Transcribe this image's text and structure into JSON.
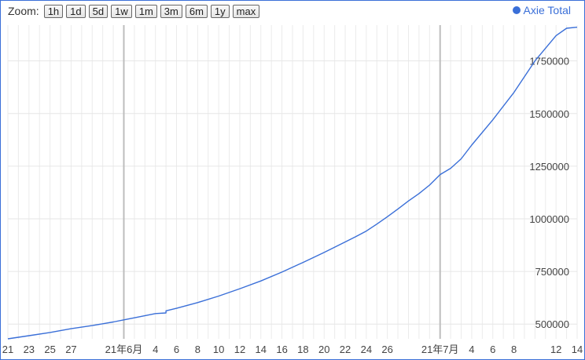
{
  "toolbar": {
    "zoom_label": "Zoom:",
    "buttons": [
      "1h",
      "1d",
      "5d",
      "1w",
      "1m",
      "3m",
      "6m",
      "1y",
      "max"
    ]
  },
  "legend": {
    "label": "Axie Total",
    "color": "#3a6fd8"
  },
  "chart_data": {
    "type": "line",
    "title": "",
    "xlabel": "",
    "ylabel": "",
    "x_start": "2021-05-21",
    "x_end": "2021-07-14",
    "x_ticks": [
      {
        "date": "2021-05-21",
        "label": "21"
      },
      {
        "date": "2021-05-23",
        "label": "23"
      },
      {
        "date": "2021-05-25",
        "label": "25"
      },
      {
        "date": "2021-05-27",
        "label": "27"
      },
      {
        "date": "2021-06-01",
        "label": "21年6月",
        "major": true
      },
      {
        "date": "2021-06-04",
        "label": "4"
      },
      {
        "date": "2021-06-06",
        "label": "6"
      },
      {
        "date": "2021-06-08",
        "label": "8"
      },
      {
        "date": "2021-06-10",
        "label": "10"
      },
      {
        "date": "2021-06-12",
        "label": "12"
      },
      {
        "date": "2021-06-14",
        "label": "14"
      },
      {
        "date": "2021-06-16",
        "label": "16"
      },
      {
        "date": "2021-06-18",
        "label": "18"
      },
      {
        "date": "2021-06-20",
        "label": "20"
      },
      {
        "date": "2021-06-22",
        "label": "22"
      },
      {
        "date": "2021-06-24",
        "label": "24"
      },
      {
        "date": "2021-06-26",
        "label": "26"
      },
      {
        "date": "2021-07-01",
        "label": "21年7月",
        "major": true
      },
      {
        "date": "2021-07-04",
        "label": "4"
      },
      {
        "date": "2021-07-06",
        "label": "6"
      },
      {
        "date": "2021-07-08",
        "label": "8"
      },
      {
        "date": "2021-07-12",
        "label": "12"
      },
      {
        "date": "2021-07-14",
        "label": "14"
      }
    ],
    "y_ticks": [
      {
        "value": 500000,
        "label": "500000"
      },
      {
        "value": 750000,
        "label": "750000"
      },
      {
        "value": 1000000,
        "label": "1000000"
      },
      {
        "value": 1250000,
        "label": "1250000"
      },
      {
        "value": 1500000,
        "label": "1500000"
      },
      {
        "value": 1750000,
        "label": "1750000"
      }
    ],
    "ylim": [
      430000,
      1920000
    ],
    "grid": true,
    "legend_position": "top-right",
    "series": [
      {
        "name": "Axie Total",
        "color": "#3a6fd8",
        "points": [
          [
            "2021-05-21",
            430000
          ],
          [
            "2021-05-23",
            445000
          ],
          [
            "2021-05-25",
            460000
          ],
          [
            "2021-05-27",
            478000
          ],
          [
            "2021-05-29",
            493000
          ],
          [
            "2021-05-31",
            510000
          ],
          [
            "2021-06-01",
            520000
          ],
          [
            "2021-06-02",
            530000
          ],
          [
            "2021-06-04",
            550000
          ],
          [
            "2021-06-05",
            553000
          ],
          [
            "2021-06-05",
            563000
          ],
          [
            "2021-06-06",
            575000
          ],
          [
            "2021-06-08",
            602000
          ],
          [
            "2021-06-10",
            633000
          ],
          [
            "2021-06-12",
            668000
          ],
          [
            "2021-06-14",
            705000
          ],
          [
            "2021-06-16",
            747000
          ],
          [
            "2021-06-18",
            793000
          ],
          [
            "2021-06-20",
            840000
          ],
          [
            "2021-06-22",
            890000
          ],
          [
            "2021-06-23",
            915000
          ],
          [
            "2021-06-24",
            942000
          ],
          [
            "2021-06-25",
            975000
          ],
          [
            "2021-06-26",
            1010000
          ],
          [
            "2021-06-27",
            1047000
          ],
          [
            "2021-06-28",
            1085000
          ],
          [
            "2021-06-29",
            1120000
          ],
          [
            "2021-06-30",
            1160000
          ],
          [
            "2021-07-01",
            1210000
          ],
          [
            "2021-07-02",
            1240000
          ],
          [
            "2021-07-03",
            1285000
          ],
          [
            "2021-07-04",
            1350000
          ],
          [
            "2021-07-06",
            1470000
          ],
          [
            "2021-07-08",
            1600000
          ],
          [
            "2021-07-10",
            1750000
          ],
          [
            "2021-07-12",
            1870000
          ],
          [
            "2021-07-13",
            1905000
          ],
          [
            "2021-07-14",
            1910000
          ]
        ]
      }
    ]
  }
}
